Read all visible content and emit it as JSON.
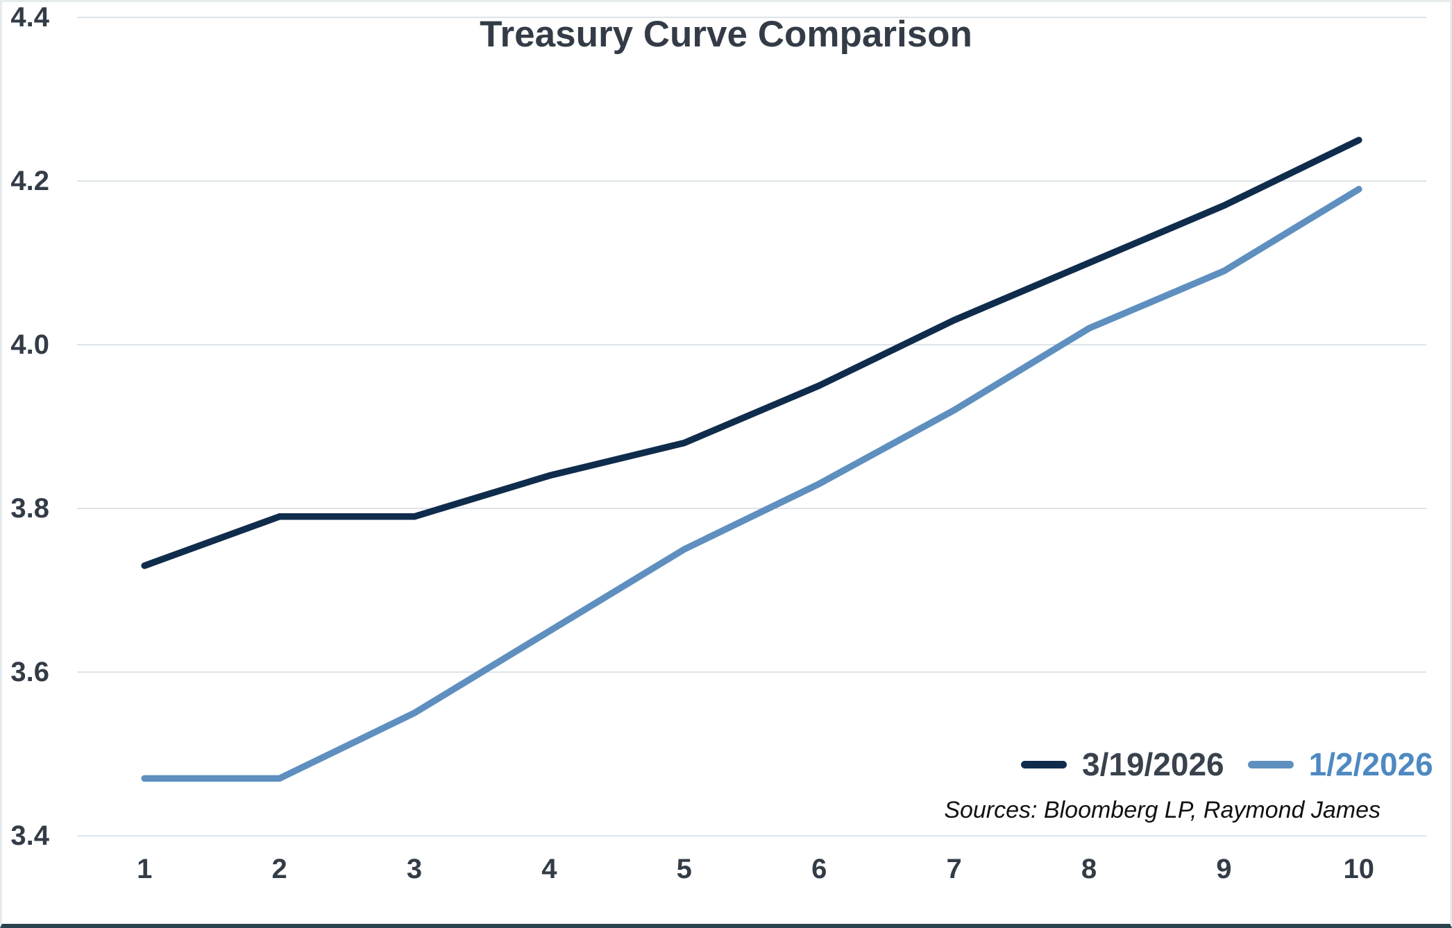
{
  "chart": {
    "title": "Treasury Curve Comparison",
    "source_note": "Sources: Bloomberg LP, Raymond James"
  },
  "chart_data": {
    "type": "line",
    "title": "Treasury Curve Comparison",
    "x": [
      1,
      2,
      3,
      4,
      5,
      6,
      7,
      8,
      9,
      10
    ],
    "x_tick_labels": [
      "1",
      "2",
      "3",
      "4",
      "5",
      "6",
      "7",
      "8",
      "9",
      "10"
    ],
    "y_tick_labels": [
      "4.4",
      "4.2",
      "4.0",
      "3.8",
      "3.6",
      "3.4"
    ],
    "xlabel": "",
    "ylabel": "",
    "ylim": [
      3.4,
      4.4
    ],
    "grid": "horizontal",
    "legend_position": "inside-bottom-right",
    "series": [
      {
        "name": "3/19/2026",
        "color": "#0f2c4c",
        "values": [
          3.73,
          3.79,
          3.79,
          3.84,
          3.88,
          3.95,
          4.03,
          4.1,
          4.17,
          4.25
        ]
      },
      {
        "name": "1/2/2026",
        "color": "#5e8fbf",
        "values": [
          3.47,
          3.47,
          3.55,
          3.65,
          3.75,
          3.83,
          3.92,
          4.02,
          4.09,
          4.19
        ]
      }
    ],
    "annotations": [
      "Sources: Bloomberg LP, Raymond James"
    ]
  },
  "colors": {
    "background": "#ffffff",
    "gridline": "#dde4e9",
    "axis_label": "#333c46",
    "title": "#333c46",
    "legend_text_dark": "#39424c",
    "legend_text_blue": "#4e89c2",
    "border_light": "#e5eaed",
    "border_bottom": "#28434f",
    "source_text": "#111111"
  }
}
